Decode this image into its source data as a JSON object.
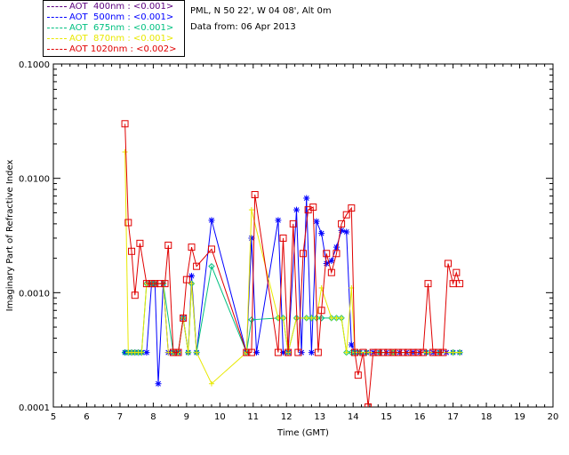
{
  "header": {
    "site": "PML, N 50 22', W 04 08', Alt 0m",
    "date": "Data from: 06 Apr 2013"
  },
  "legend": [
    {
      "label": "AOT  400nm : <0.001>",
      "color": "#5b007f"
    },
    {
      "label": "AOT  500nm : <0.001>",
      "color": "#0000ff"
    },
    {
      "label": "AOT  675nm : <0.001>",
      "color": "#00c080"
    },
    {
      "label": "AOT  870nm : <0.001>",
      "color": "#e8e800"
    },
    {
      "label": "AOT 1020nm : <0.002>",
      "color": "#e00000"
    }
  ],
  "chart_data": {
    "type": "line",
    "title": "",
    "xlabel": "Time (GMT)",
    "ylabel": "Imaginary Part of Refractive Index",
    "xlim": [
      5,
      20
    ],
    "ylim": [
      0.0001,
      0.1
    ],
    "yscale": "log",
    "xticks": [
      "5",
      "6",
      "7",
      "8",
      "9",
      "10",
      "11",
      "12",
      "13",
      "14",
      "15",
      "16",
      "17",
      "18",
      "19",
      "20"
    ],
    "yticks": [
      {
        "value": 0.0001,
        "label": "0.0001"
      },
      {
        "value": 0.001,
        "label": "0.0010"
      },
      {
        "value": 0.01,
        "label": "0.0100"
      },
      {
        "value": 0.1,
        "label": "0.1000"
      }
    ],
    "series": [
      {
        "name": "AOT  500nm",
        "color": "#0000ff",
        "marker": "asterisk",
        "x": [
          7.15,
          7.25,
          7.35,
          7.45,
          7.55,
          7.65,
          7.8,
          7.95,
          8.05,
          8.15,
          8.3,
          8.45,
          8.6,
          8.75,
          8.9,
          9.05,
          9.15,
          9.3,
          9.75,
          10.8,
          10.95,
          11.1,
          11.75,
          11.9,
          12.05,
          12.3,
          12.45,
          12.6,
          12.75,
          12.9,
          13.05,
          13.2,
          13.35,
          13.5,
          13.65,
          13.8,
          13.95,
          14.05,
          14.2,
          14.4,
          14.6,
          14.8,
          15.0,
          15.2,
          15.4,
          15.6,
          15.8,
          16.0,
          16.2,
          16.4,
          16.6,
          16.8,
          17.0,
          17.2
        ],
        "y": [
          0.0003,
          0.0003,
          0.0003,
          0.0003,
          0.0003,
          0.0003,
          0.0003,
          0.0012,
          0.0012,
          0.00016,
          0.0012,
          0.0003,
          0.0003,
          0.0003,
          0.0006,
          0.0003,
          0.0014,
          0.0003,
          0.0043,
          0.0003,
          0.003,
          0.0003,
          0.0043,
          0.0003,
          0.0003,
          0.0053,
          0.0003,
          0.0067,
          0.0003,
          0.0042,
          0.0033,
          0.0018,
          0.0019,
          0.0025,
          0.0035,
          0.0034,
          0.00035,
          0.0003,
          0.0003,
          0.0003,
          0.0003,
          0.0003,
          0.0003,
          0.0003,
          0.0003,
          0.0003,
          0.0003,
          0.0003,
          0.0003,
          0.0003,
          0.0003,
          0.0003,
          0.0003,
          0.0003
        ]
      },
      {
        "name": "AOT  675nm",
        "color": "#00c080",
        "marker": "diamond",
        "x": [
          7.15,
          7.25,
          7.35,
          7.45,
          7.55,
          7.65,
          7.8,
          7.95,
          8.05,
          8.3,
          8.6,
          8.75,
          8.9,
          9.05,
          9.15,
          9.3,
          9.75,
          10.8,
          10.95,
          11.75,
          11.9,
          12.05,
          12.3,
          12.6,
          12.75,
          12.9,
          13.05,
          13.35,
          13.5,
          13.65,
          13.8,
          13.95,
          14.05,
          14.2,
          14.4,
          14.8,
          15.2,
          16.2,
          16.6,
          17.0,
          17.2
        ],
        "y": [
          0.0003,
          0.0003,
          0.0003,
          0.0003,
          0.0003,
          0.0003,
          0.0012,
          0.0012,
          0.0012,
          0.0012,
          0.0003,
          0.0003,
          0.0006,
          0.0003,
          0.0012,
          0.0003,
          0.0017,
          0.0003,
          0.00058,
          0.0006,
          0.0006,
          0.0003,
          0.0006,
          0.0006,
          0.0006,
          0.0006,
          0.0006,
          0.0006,
          0.0006,
          0.0006,
          0.0003,
          0.0003,
          0.0003,
          0.0003,
          0.0003,
          0.0003,
          0.0003,
          0.0003,
          0.0003,
          0.0003,
          0.0003
        ]
      },
      {
        "name": "AOT  870nm",
        "color": "#e8e800",
        "marker": "plus",
        "x": [
          7.15,
          7.25,
          7.35,
          7.45,
          7.55,
          7.65,
          7.8,
          7.95,
          8.05,
          8.3,
          8.45,
          8.6,
          8.75,
          8.9,
          9.05,
          9.15,
          9.3,
          9.75,
          10.8,
          10.95,
          11.75,
          11.9,
          12.05,
          12.3,
          12.6,
          12.75,
          12.9,
          13.05,
          13.35,
          13.5,
          13.65,
          13.8,
          13.95,
          14.05,
          14.2,
          14.4,
          14.8,
          15.2,
          16.2,
          16.6,
          17.0,
          17.2
        ],
        "y": [
          0.017,
          0.0003,
          0.0003,
          0.0003,
          0.0003,
          0.0003,
          0.0012,
          0.0012,
          0.0012,
          0.0012,
          0.0003,
          0.0003,
          0.0003,
          0.0006,
          0.0003,
          0.0012,
          0.0003,
          0.00016,
          0.0003,
          0.0053,
          0.0006,
          0.0006,
          0.0003,
          0.0006,
          0.0006,
          0.0006,
          0.0006,
          0.0011,
          0.0006,
          0.0006,
          0.0006,
          0.0003,
          0.0011,
          0.0003,
          0.0003,
          0.0003,
          0.0003,
          0.0003,
          0.0003,
          0.0003,
          0.0003,
          0.0003
        ]
      },
      {
        "name": "AOT 1020nm",
        "color": "#e00000",
        "marker": "square",
        "x": [
          7.15,
          7.25,
          7.35,
          7.45,
          7.6,
          7.8,
          7.95,
          8.05,
          8.2,
          8.35,
          8.45,
          8.6,
          8.75,
          8.9,
          9.0,
          9.15,
          9.3,
          9.75,
          10.8,
          10.95,
          11.05,
          11.75,
          11.9,
          12.05,
          12.2,
          12.35,
          12.5,
          12.65,
          12.8,
          12.95,
          13.05,
          13.2,
          13.35,
          13.5,
          13.65,
          13.8,
          13.95,
          14.05,
          14.15,
          14.3,
          14.45,
          14.6,
          14.75,
          14.9,
          15.05,
          15.2,
          15.35,
          15.5,
          15.65,
          15.8,
          15.95,
          16.1,
          16.25,
          16.4,
          16.55,
          16.7,
          16.85,
          17.0,
          17.1,
          17.2
        ],
        "y": [
          0.03,
          0.0041,
          0.0023,
          0.00095,
          0.0027,
          0.0012,
          0.0012,
          0.0012,
          0.0012,
          0.0012,
          0.0026,
          0.0003,
          0.0003,
          0.0006,
          0.0013,
          0.0025,
          0.0017,
          0.0024,
          0.0003,
          0.0003,
          0.0072,
          0.0003,
          0.003,
          0.0003,
          0.004,
          0.0003,
          0.0022,
          0.0053,
          0.0056,
          0.0003,
          0.0007,
          0.0022,
          0.0015,
          0.0022,
          0.004,
          0.0048,
          0.0055,
          0.0003,
          0.00019,
          0.0003,
          0.0001,
          0.0003,
          0.0003,
          0.0003,
          0.0003,
          0.0003,
          0.0003,
          0.0003,
          0.0003,
          0.0003,
          0.0003,
          0.0003,
          0.0012,
          0.0003,
          0.0003,
          0.0003,
          0.0018,
          0.0012,
          0.0015,
          0.0012
        ]
      }
    ]
  }
}
